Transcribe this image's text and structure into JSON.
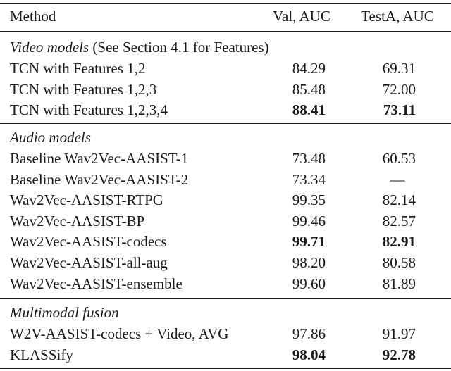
{
  "header": {
    "method": "Method",
    "val": "Val, AUC",
    "testa": "TestA, AUC"
  },
  "sections": [
    {
      "title": "Video models",
      "note": " (See Section 4.1 for Features)",
      "rows": [
        {
          "method": "TCN with Features 1,2",
          "val": "84.29",
          "testa": "69.31"
        },
        {
          "method": "TCN with Features 1,2,3",
          "val": "85.48",
          "testa": "72.00"
        },
        {
          "method": "TCN with Features 1,2,3,4",
          "val": "88.41",
          "testa": "73.11"
        }
      ]
    },
    {
      "title": "Audio models",
      "rows": [
        {
          "method": "Baseline Wav2Vec-AASIST-1",
          "val": "73.48",
          "testa": "60.53"
        },
        {
          "method": "Baseline Wav2Vec-AASIST-2",
          "val": "73.34",
          "testa": "—"
        },
        {
          "method": "Wav2Vec-AASIST-RTPG",
          "val": "99.35",
          "testa": "82.14"
        },
        {
          "method": "Wav2Vec-AASIST-BP",
          "val": "99.46",
          "testa": "82.57"
        },
        {
          "method": "Wav2Vec-AASIST-codecs",
          "val": "99.71",
          "testa": "82.91"
        },
        {
          "method": "Wav2Vec-AASIST-all-aug",
          "val": "98.20",
          "testa": "80.58"
        },
        {
          "method": "Wav2Vec-AASIST-ensemble",
          "val": "99.60",
          "testa": "81.89"
        }
      ]
    },
    {
      "title": "Multimodal fusion",
      "rows": [
        {
          "method": "W2V-AASIST-codecs + Video, AVG",
          "val": "97.86",
          "testa": "91.97"
        },
        {
          "method": "KLASSify",
          "val": "98.04",
          "testa": "92.78"
        }
      ]
    }
  ]
}
